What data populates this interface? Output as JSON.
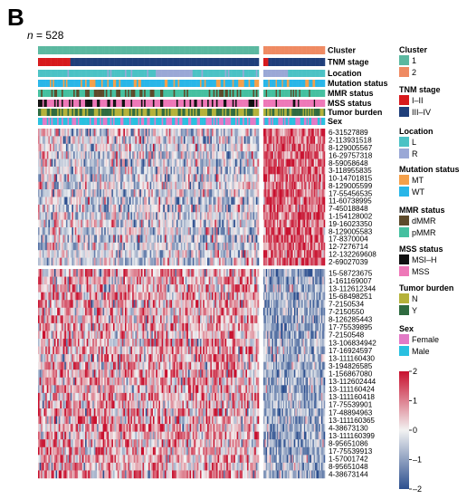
{
  "panel_letter": "B",
  "n_label": {
    "prefix": "n",
    "text": " = 528"
  },
  "colors": {
    "cluster_1": "#5bb8a0",
    "cluster_2": "#ef8a62",
    "tnm_1": "#d7191c",
    "tnm_2": "#1f3e7a",
    "loc_L": "#4bc2c5",
    "loc_R": "#9aa8d6",
    "mt": "#f4a04a",
    "wt": "#29b6e8",
    "dmmr": "#5d4a2a",
    "pmmr": "#45c0a0",
    "msih": "#111111",
    "mss": "#ee78b8",
    "tb_N": "#b5b23a",
    "tb_Y": "#2f6b40",
    "female": "#e27ac6",
    "male": "#29c0e0",
    "heat_high": "#c8102e",
    "heat_mid": "#f2f2f2",
    "heat_low": "#2c4f8f"
  },
  "annotation_tracks": [
    "Cluster",
    "TNM stage",
    "Location",
    "Mutation status",
    "MMR status",
    "MSS status",
    "Tumor burden",
    "Sex"
  ],
  "genes_top": [
    "6-31527889",
    "2-113931518",
    "8-129005567",
    "16-29757318",
    "8-59058648",
    "3-118955835",
    "10-14701815",
    "8-129005599",
    "17-55456535",
    "11-60738995",
    "7-45018848",
    "1-154128002",
    "19-16023350",
    "8-129005583",
    "17-8370004",
    "12-7276714",
    "12-132269608",
    "2-69027039"
  ],
  "genes_bottom": [
    "15-58723675",
    "1-161169007",
    "13-112612344",
    "15-68498251",
    "7-2150534",
    "7-2150550",
    "8-126285443",
    "17-75539895",
    "7-2150548",
    "13-106834942",
    "17-16924597",
    "13-111160430",
    "3-194826585",
    "1-156867080",
    "13-112602444",
    "13-111160424",
    "13-111160418",
    "17-75539901",
    "17-48894963",
    "13-111160365",
    "4-38673130",
    "13-111160399",
    "8-95651086",
    "17-75539913",
    "1-57001742",
    "8-95651048",
    "4-38673144"
  ],
  "legend": [
    {
      "title": "Cluster",
      "items": [
        {
          "label": "1",
          "color_key": "cluster_1"
        },
        {
          "label": "2",
          "color_key": "cluster_2"
        }
      ]
    },
    {
      "title": "TNM stage",
      "items": [
        {
          "label": "I–II",
          "color_key": "tnm_1"
        },
        {
          "label": "III–IV",
          "color_key": "tnm_2"
        }
      ]
    },
    {
      "title": "Location",
      "items": [
        {
          "label": "L",
          "color_key": "loc_L"
        },
        {
          "label": "R",
          "color_key": "loc_R"
        }
      ]
    },
    {
      "title": "Mutation status",
      "items": [
        {
          "label": "MT",
          "color_key": "mt"
        },
        {
          "label": "WT",
          "color_key": "wt"
        }
      ]
    },
    {
      "title": "MMR status",
      "items": [
        {
          "label": "dMMR",
          "color_key": "dmmr"
        },
        {
          "label": "pMMR",
          "color_key": "pmmr"
        }
      ]
    },
    {
      "title": "MSS status",
      "items": [
        {
          "label": "MSI–H",
          "color_key": "msih"
        },
        {
          "label": "MSS",
          "color_key": "mss"
        }
      ]
    },
    {
      "title": "Tumor burden",
      "items": [
        {
          "label": "N",
          "color_key": "tb_N"
        },
        {
          "label": "Y",
          "color_key": "tb_Y"
        }
      ]
    },
    {
      "title": "Sex",
      "items": [
        {
          "label": "Female",
          "color_key": "female"
        },
        {
          "label": "Male",
          "color_key": "male"
        }
      ]
    }
  ],
  "colorbar": {
    "ticks": [
      "2",
      "1",
      "0",
      "–1",
      "–2"
    ],
    "range": [
      -2,
      2
    ]
  }
}
